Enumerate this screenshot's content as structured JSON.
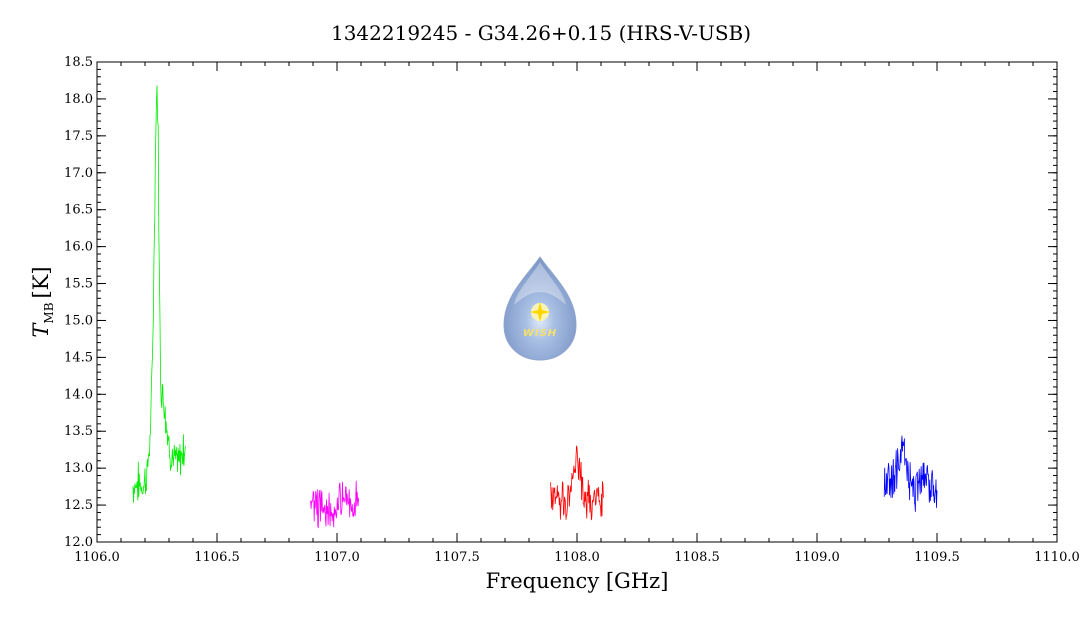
{
  "chart_data": {
    "type": "line",
    "title": "1342219245 - G34.26+0.15 (HRS-V-USB)",
    "xlabel": "Frequency [GHz]",
    "ylabel_symbol": "T",
    "ylabel_subscript": "MB",
    "ylabel_unit": "[K]",
    "xlim": [
      1106.0,
      1110.0
    ],
    "ylim": [
      12.0,
      18.5
    ],
    "xticks": [
      "1106.0",
      "1106.5",
      "1107.0",
      "1107.5",
      "1108.0",
      "1108.5",
      "1109.0",
      "1109.5",
      "1110.0"
    ],
    "yticks": [
      "12.0",
      "12.5",
      "13.0",
      "13.5",
      "14.0",
      "14.5",
      "15.0",
      "15.5",
      "16.0",
      "16.5",
      "17.0",
      "17.5",
      "18.0",
      "18.5"
    ],
    "grid": false,
    "legend": "none",
    "watermark_text": "WISH",
    "series": [
      {
        "color": "#00ee00",
        "x": [
          1106.15,
          1106.17,
          1106.19,
          1106.21,
          1106.225,
          1106.235,
          1106.245,
          1106.25,
          1106.255,
          1106.26,
          1106.265,
          1106.27,
          1106.28,
          1106.29,
          1106.3,
          1106.32,
          1106.34,
          1106.36,
          1106.37
        ],
        "y": [
          12.75,
          12.8,
          12.75,
          12.95,
          13.6,
          15.2,
          17.6,
          18.15,
          17.5,
          15.5,
          14.2,
          14.1,
          13.9,
          13.6,
          13.3,
          13.1,
          13.05,
          13.25,
          13.3
        ]
      },
      {
        "color": "#ff00ff",
        "x": [
          1106.89,
          1106.92,
          1106.95,
          1106.98,
          1107.01,
          1107.04,
          1107.07,
          1107.09
        ],
        "y": [
          12.55,
          12.45,
          12.5,
          12.4,
          12.55,
          12.55,
          12.5,
          12.6
        ]
      },
      {
        "color": "#ff0000",
        "x": [
          1107.89,
          1107.92,
          1107.95,
          1107.97,
          1107.985,
          1108.0,
          1108.015,
          1108.03,
          1108.06,
          1108.09,
          1108.11
        ],
        "y": [
          12.6,
          12.6,
          12.55,
          12.65,
          12.95,
          13.25,
          12.9,
          12.6,
          12.5,
          12.55,
          12.6
        ]
      },
      {
        "color": "#0000ff",
        "x": [
          1109.28,
          1109.3,
          1109.32,
          1109.34,
          1109.36,
          1109.38,
          1109.4,
          1109.42,
          1109.44,
          1109.46,
          1109.48,
          1109.5
        ],
        "y": [
          12.85,
          12.75,
          12.85,
          13.05,
          13.35,
          12.9,
          12.65,
          12.75,
          12.95,
          12.85,
          12.7,
          12.7
        ]
      }
    ]
  }
}
